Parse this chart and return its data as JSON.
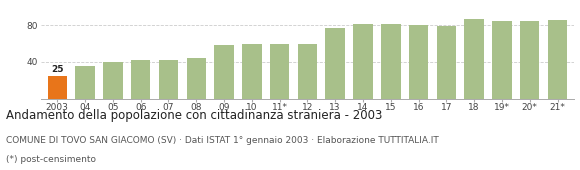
{
  "categories": [
    "2003",
    "04",
    "05",
    "06",
    "07",
    "08",
    "09",
    "10",
    "11*",
    "12",
    "13",
    "14",
    "15",
    "16",
    "17",
    "18",
    "19*",
    "20*",
    "21*"
  ],
  "values": [
    25,
    35,
    40,
    42,
    42,
    44,
    58,
    60,
    60,
    60,
    77,
    81,
    81,
    80,
    79,
    87,
    85,
    84,
    86
  ],
  "bar_colors": [
    "#e8751a",
    "#a8c08a",
    "#a8c08a",
    "#a8c08a",
    "#a8c08a",
    "#a8c08a",
    "#a8c08a",
    "#a8c08a",
    "#a8c08a",
    "#a8c08a",
    "#a8c08a",
    "#a8c08a",
    "#a8c08a",
    "#a8c08a",
    "#a8c08a",
    "#a8c08a",
    "#a8c08a",
    "#a8c08a",
    "#a8c08a"
  ],
  "highlight_label": "25",
  "highlight_index": 0,
  "ylim": [
    0,
    100
  ],
  "yticks": [
    40,
    80
  ],
  "title": "Andamento della popolazione con cittadinanza straniera - 2003",
  "subtitle": "COMUNE DI TOVO SAN GIACOMO (SV) · Dati ISTAT 1° gennaio 2003 · Elaborazione TUTTITALIA.IT",
  "footnote": "(*) post-censimento",
  "grid_color": "#cccccc",
  "background_color": "#ffffff",
  "title_fontsize": 8.5,
  "subtitle_fontsize": 6.5,
  "footnote_fontsize": 6.5,
  "tick_fontsize": 6.5,
  "bar_width": 0.7
}
